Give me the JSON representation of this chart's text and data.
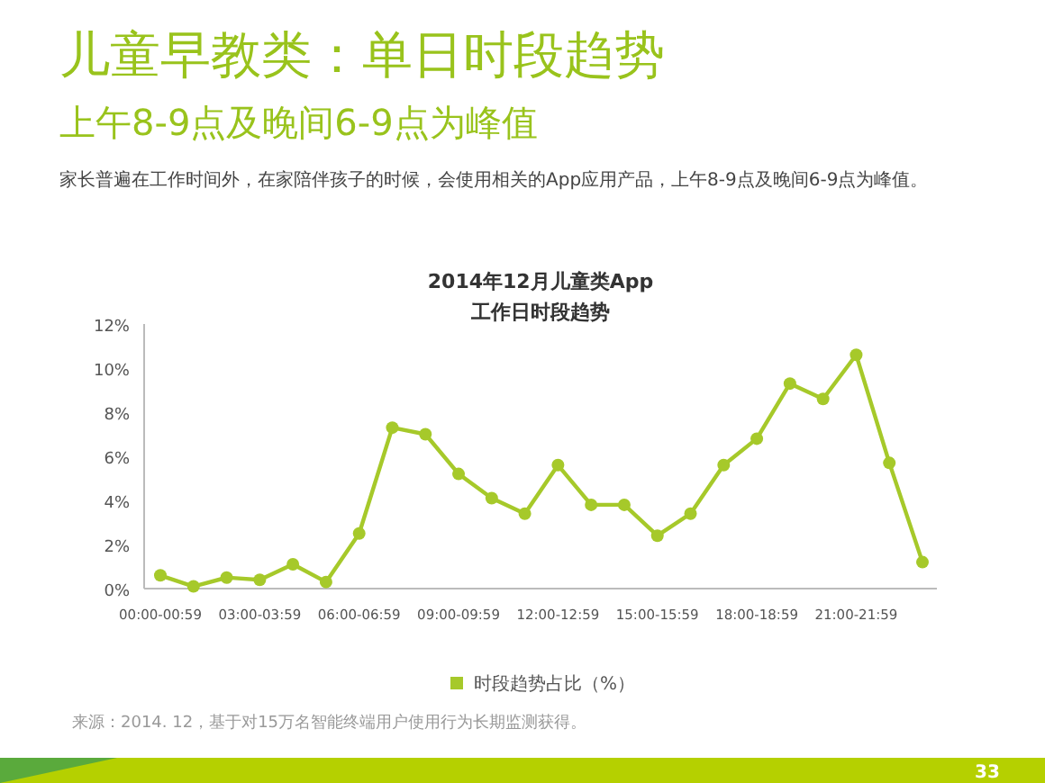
{
  "chart_data": {
    "type": "line",
    "title": "2014年12月儿童类App\n工作日时段趋势",
    "subtitle": "儿童早教类：单日时段趋势",
    "categories": [
      "00:00-00:59",
      null,
      null,
      "03:00-03:59",
      null,
      null,
      "06:00-06:59",
      null,
      null,
      "09:00-09:59",
      null,
      null,
      "12:00-12:59",
      null,
      null,
      "15:00-15:59",
      null,
      null,
      "18:00-18:59",
      null,
      null,
      "21:00-21:59",
      null,
      null
    ],
    "series": [
      {
        "name": "时段趋势占比（%）",
        "color": "#a6c92a",
        "values": [
          0.6,
          0.1,
          0.5,
          0.4,
          1.1,
          0.3,
          2.5,
          7.3,
          7.0,
          5.2,
          4.1,
          3.4,
          5.6,
          3.8,
          3.8,
          2.4,
          3.4,
          5.6,
          6.8,
          9.3,
          8.6,
          10.6,
          5.7,
          1.2
        ]
      }
    ],
    "ylim": [
      0,
      12
    ],
    "yticks": [
      {
        "value": 0,
        "label": "0%"
      },
      {
        "value": 2,
        "label": "2%"
      },
      {
        "value": 4,
        "label": "4%"
      },
      {
        "value": 6,
        "label": "6%"
      },
      {
        "value": 8,
        "label": "8%"
      },
      {
        "value": 10,
        "label": "10%"
      },
      {
        "value": 12,
        "label": "12%"
      }
    ],
    "grid": false,
    "legend": "bottom",
    "marker": "circle",
    "line_style": "solid",
    "annotations": [
      "上午8-9点及晚间6-9点为峰值",
      "家长普遍在工作时间外，在家陪伴孩子的时候，会使用相关的App应用产品，上午8-9点及晚间6-9点为峰值。",
      "来源：2014. 12，基于对15万名智能终端用户使用行为长期监测获得。",
      "33"
    ]
  }
}
